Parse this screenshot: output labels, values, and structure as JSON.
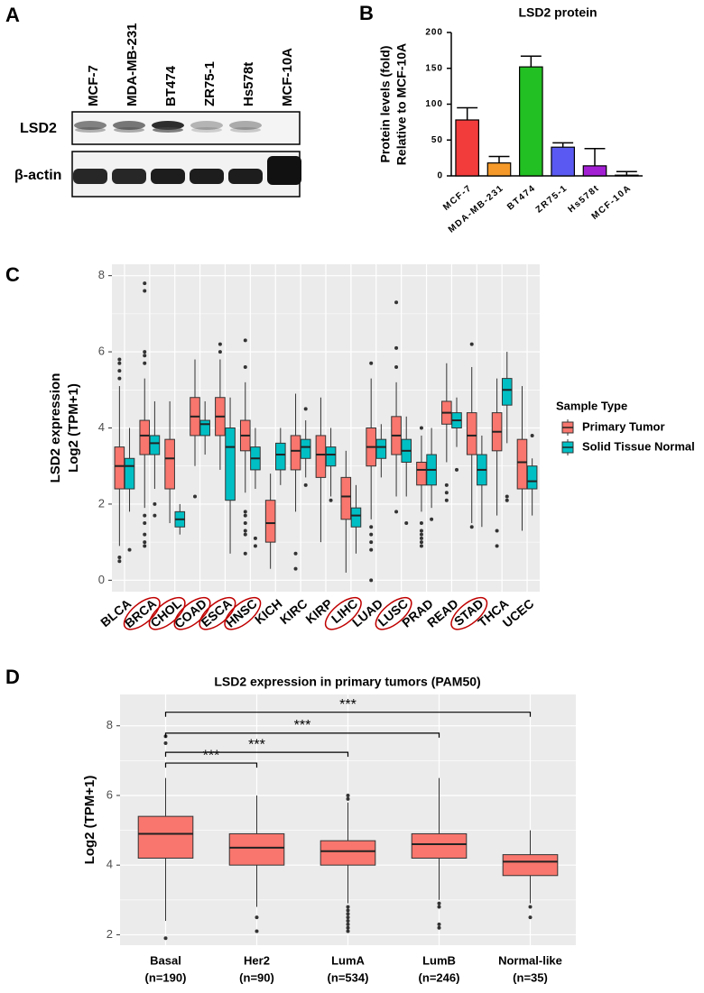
{
  "panel_a": {
    "label": "A",
    "cell_lines": [
      "MCF-7",
      "MDA-MB-231",
      "BT474",
      "ZR75-1",
      "Hs578t",
      "MCF-10A"
    ],
    "proteins": [
      "LSD2",
      "β-actin"
    ]
  },
  "chart_data": [
    {
      "type": "bar",
      "panel": "B",
      "title": "LSD2 protein",
      "y_label": [
        "Protein levels (fold)",
        "Relative to MCF-10A"
      ],
      "categories": [
        "MCF-7",
        "MDA-MB-231",
        "BT474",
        "ZR75-1",
        "Hs578t",
        "MCF-10A"
      ],
      "values": [
        78,
        18,
        152,
        40,
        14,
        1
      ],
      "errors": [
        17,
        9,
        15,
        6,
        24,
        5
      ],
      "colors": [
        "#f23c3c",
        "#f59a2a",
        "#22c022",
        "#5a5af2",
        "#a21fd4",
        "#8a8a8a"
      ],
      "ylim": [
        0,
        200
      ],
      "yticks": [
        0,
        50,
        100,
        150,
        200
      ]
    },
    {
      "type": "box",
      "panel": "C",
      "y_label": [
        "LSD2 expression",
        "Log2 (TPM+1)"
      ],
      "categories": [
        "BLCA",
        "BRCA",
        "CHOL",
        "COAD",
        "ESCA",
        "HNSC",
        "KICH",
        "KIRC",
        "KIRP",
        "LIHC",
        "LUAD",
        "LUSC",
        "PRAD",
        "READ",
        "STAD",
        "THCA",
        "UCEC"
      ],
      "circled": [
        false,
        true,
        true,
        true,
        true,
        true,
        false,
        false,
        false,
        true,
        false,
        true,
        false,
        false,
        true,
        false,
        false
      ],
      "legend_title": "Sample Type",
      "series": [
        {
          "name": "Primary Tumor",
          "color": "#f8766d",
          "boxes": [
            [
              0.9,
              2.4,
              3.0,
              3.5,
              5.1
            ],
            [
              1.9,
              3.3,
              3.8,
              4.2,
              5.3
            ],
            [
              1.5,
              2.4,
              3.2,
              3.7,
              4.7
            ],
            [
              3.0,
              3.8,
              4.3,
              4.8,
              5.8
            ],
            [
              2.9,
              3.8,
              4.3,
              4.8,
              5.8
            ],
            [
              2.3,
              3.4,
              3.8,
              4.2,
              5.2
            ],
            [
              0.3,
              1.0,
              1.5,
              2.1,
              2.8
            ],
            [
              1.8,
              2.9,
              3.4,
              3.8,
              4.9
            ],
            [
              1.0,
              2.7,
              3.3,
              3.8,
              4.8
            ],
            [
              0.2,
              1.6,
              2.2,
              2.7,
              3.4
            ],
            [
              1.6,
              3.0,
              3.5,
              4.0,
              5.3
            ],
            [
              2.2,
              3.3,
              3.8,
              4.3,
              5.2
            ],
            [
              1.8,
              2.5,
              2.9,
              3.1,
              3.8
            ],
            [
              3.1,
              4.1,
              4.4,
              4.7,
              5.7
            ],
            [
              1.5,
              3.3,
              3.8,
              4.4,
              5.6
            ],
            [
              1.7,
              3.4,
              3.9,
              4.4,
              5.3
            ],
            [
              1.3,
              2.4,
              3.1,
              3.7,
              5.1
            ]
          ],
          "outliers": [
            [
              5.8,
              5.7,
              5.5,
              5.3,
              0.6,
              0.5
            ],
            [
              7.8,
              7.6,
              6.0,
              5.9,
              5.7,
              1.7,
              1.5,
              1.2,
              1.0,
              0.9
            ],
            [],
            [
              2.2
            ],
            [
              6.2,
              6.0
            ],
            [
              6.3,
              5.6,
              1.8,
              1.7,
              1.5,
              1.3,
              1.2,
              0.7
            ],
            [],
            [
              0.7,
              0.3
            ],
            [],
            [],
            [
              5.7,
              1.4,
              1.2,
              1.0,
              0.8,
              0.0
            ],
            [
              7.3,
              6.1,
              5.6,
              1.8
            ],
            [
              4.0,
              1.5,
              1.3,
              1.2,
              1.1,
              1.0,
              0.9
            ],
            [
              2.5,
              2.3,
              2.1
            ],
            [
              6.2,
              1.4
            ],
            [
              1.3,
              0.9
            ],
            []
          ]
        },
        {
          "name": "Solid Tissue Normal",
          "color": "#00bfc4",
          "boxes": [
            [
              1.8,
              2.4,
              3.0,
              3.2,
              4.0
            ],
            [
              2.4,
              3.3,
              3.6,
              3.8,
              4.7
            ],
            [
              1.2,
              1.4,
              1.6,
              1.8,
              2.0
            ],
            [
              3.3,
              3.8,
              4.1,
              4.2,
              4.7
            ],
            [
              0.7,
              2.1,
              3.5,
              4.0,
              4.8
            ],
            [
              2.4,
              2.9,
              3.2,
              3.5,
              4.0
            ],
            [
              2.5,
              2.9,
              3.3,
              3.6,
              4.0
            ],
            [
              2.7,
              3.2,
              3.5,
              3.7,
              4.2
            ],
            [
              2.2,
              3.0,
              3.3,
              3.5,
              4.0
            ],
            [
              0.7,
              1.4,
              1.7,
              1.9,
              2.5
            ],
            [
              2.7,
              3.2,
              3.5,
              3.7,
              4.1
            ],
            [
              2.2,
              3.1,
              3.4,
              3.7,
              4.3
            ],
            [
              1.9,
              2.5,
              2.9,
              3.3,
              4.0
            ],
            [
              3.5,
              4.0,
              4.2,
              4.4,
              4.8
            ],
            [
              1.4,
              2.5,
              2.9,
              3.3,
              3.8
            ],
            [
              3.6,
              4.6,
              5.0,
              5.3,
              6.0
            ],
            [
              1.7,
              2.4,
              2.6,
              3.0,
              3.2
            ]
          ],
          "outliers": [
            [
              0.8
            ],
            [
              2.0,
              1.7
            ],
            [],
            [],
            [],
            [
              1.1,
              0.9
            ],
            [],
            [
              4.5,
              2.5
            ],
            [
              2.1
            ],
            [],
            [],
            [
              1.5
            ],
            [
              1.6
            ],
            [
              2.9
            ],
            [],
            [
              2.2,
              2.1
            ],
            [
              3.8
            ]
          ]
        }
      ],
      "ylim": [
        -0.3,
        8.3
      ],
      "yticks": [
        0,
        2,
        4,
        6,
        8
      ],
      "grid": true
    },
    {
      "type": "box",
      "panel": "D",
      "title": "LSD2 expression in primary tumors (PAM50)",
      "y_label": [
        "Log2 (TPM+1)"
      ],
      "categories": [
        "Basal",
        "Her2",
        "LumA",
        "LumB",
        "Normal-like"
      ],
      "n_labels": [
        "(n=190)",
        "(n=90)",
        "(n=534)",
        "(n=246)",
        "(n=35)"
      ],
      "color": "#f8766d",
      "boxes": [
        [
          2.4,
          4.2,
          4.9,
          5.4,
          6.5
        ],
        [
          2.8,
          4.0,
          4.5,
          4.9,
          6.0
        ],
        [
          2.9,
          4.0,
          4.4,
          4.7,
          5.8
        ],
        [
          3.0,
          4.2,
          4.6,
          4.9,
          6.5
        ],
        [
          2.9,
          3.7,
          4.1,
          4.3,
          5.0
        ]
      ],
      "outliers": [
        [
          7.7,
          7.5,
          1.9
        ],
        [
          2.5,
          2.1
        ],
        [
          6.0,
          5.9,
          2.8,
          2.7,
          2.6,
          2.5,
          2.4,
          2.3,
          2.2,
          2.1
        ],
        [
          2.9,
          2.8,
          2.3,
          2.2
        ],
        [
          2.8,
          2.5
        ]
      ],
      "brackets": [
        {
          "to": 1,
          "y": 6.93,
          "label": "***"
        },
        {
          "to": 2,
          "y": 7.24,
          "label": "***"
        },
        {
          "to": 3,
          "y": 7.79,
          "label": "***"
        },
        {
          "to": 4,
          "y": 8.39,
          "label": "***"
        }
      ],
      "ylim": [
        1.7,
        8.9
      ],
      "yticks": [
        2,
        4,
        6,
        8
      ],
      "grid": true
    }
  ]
}
